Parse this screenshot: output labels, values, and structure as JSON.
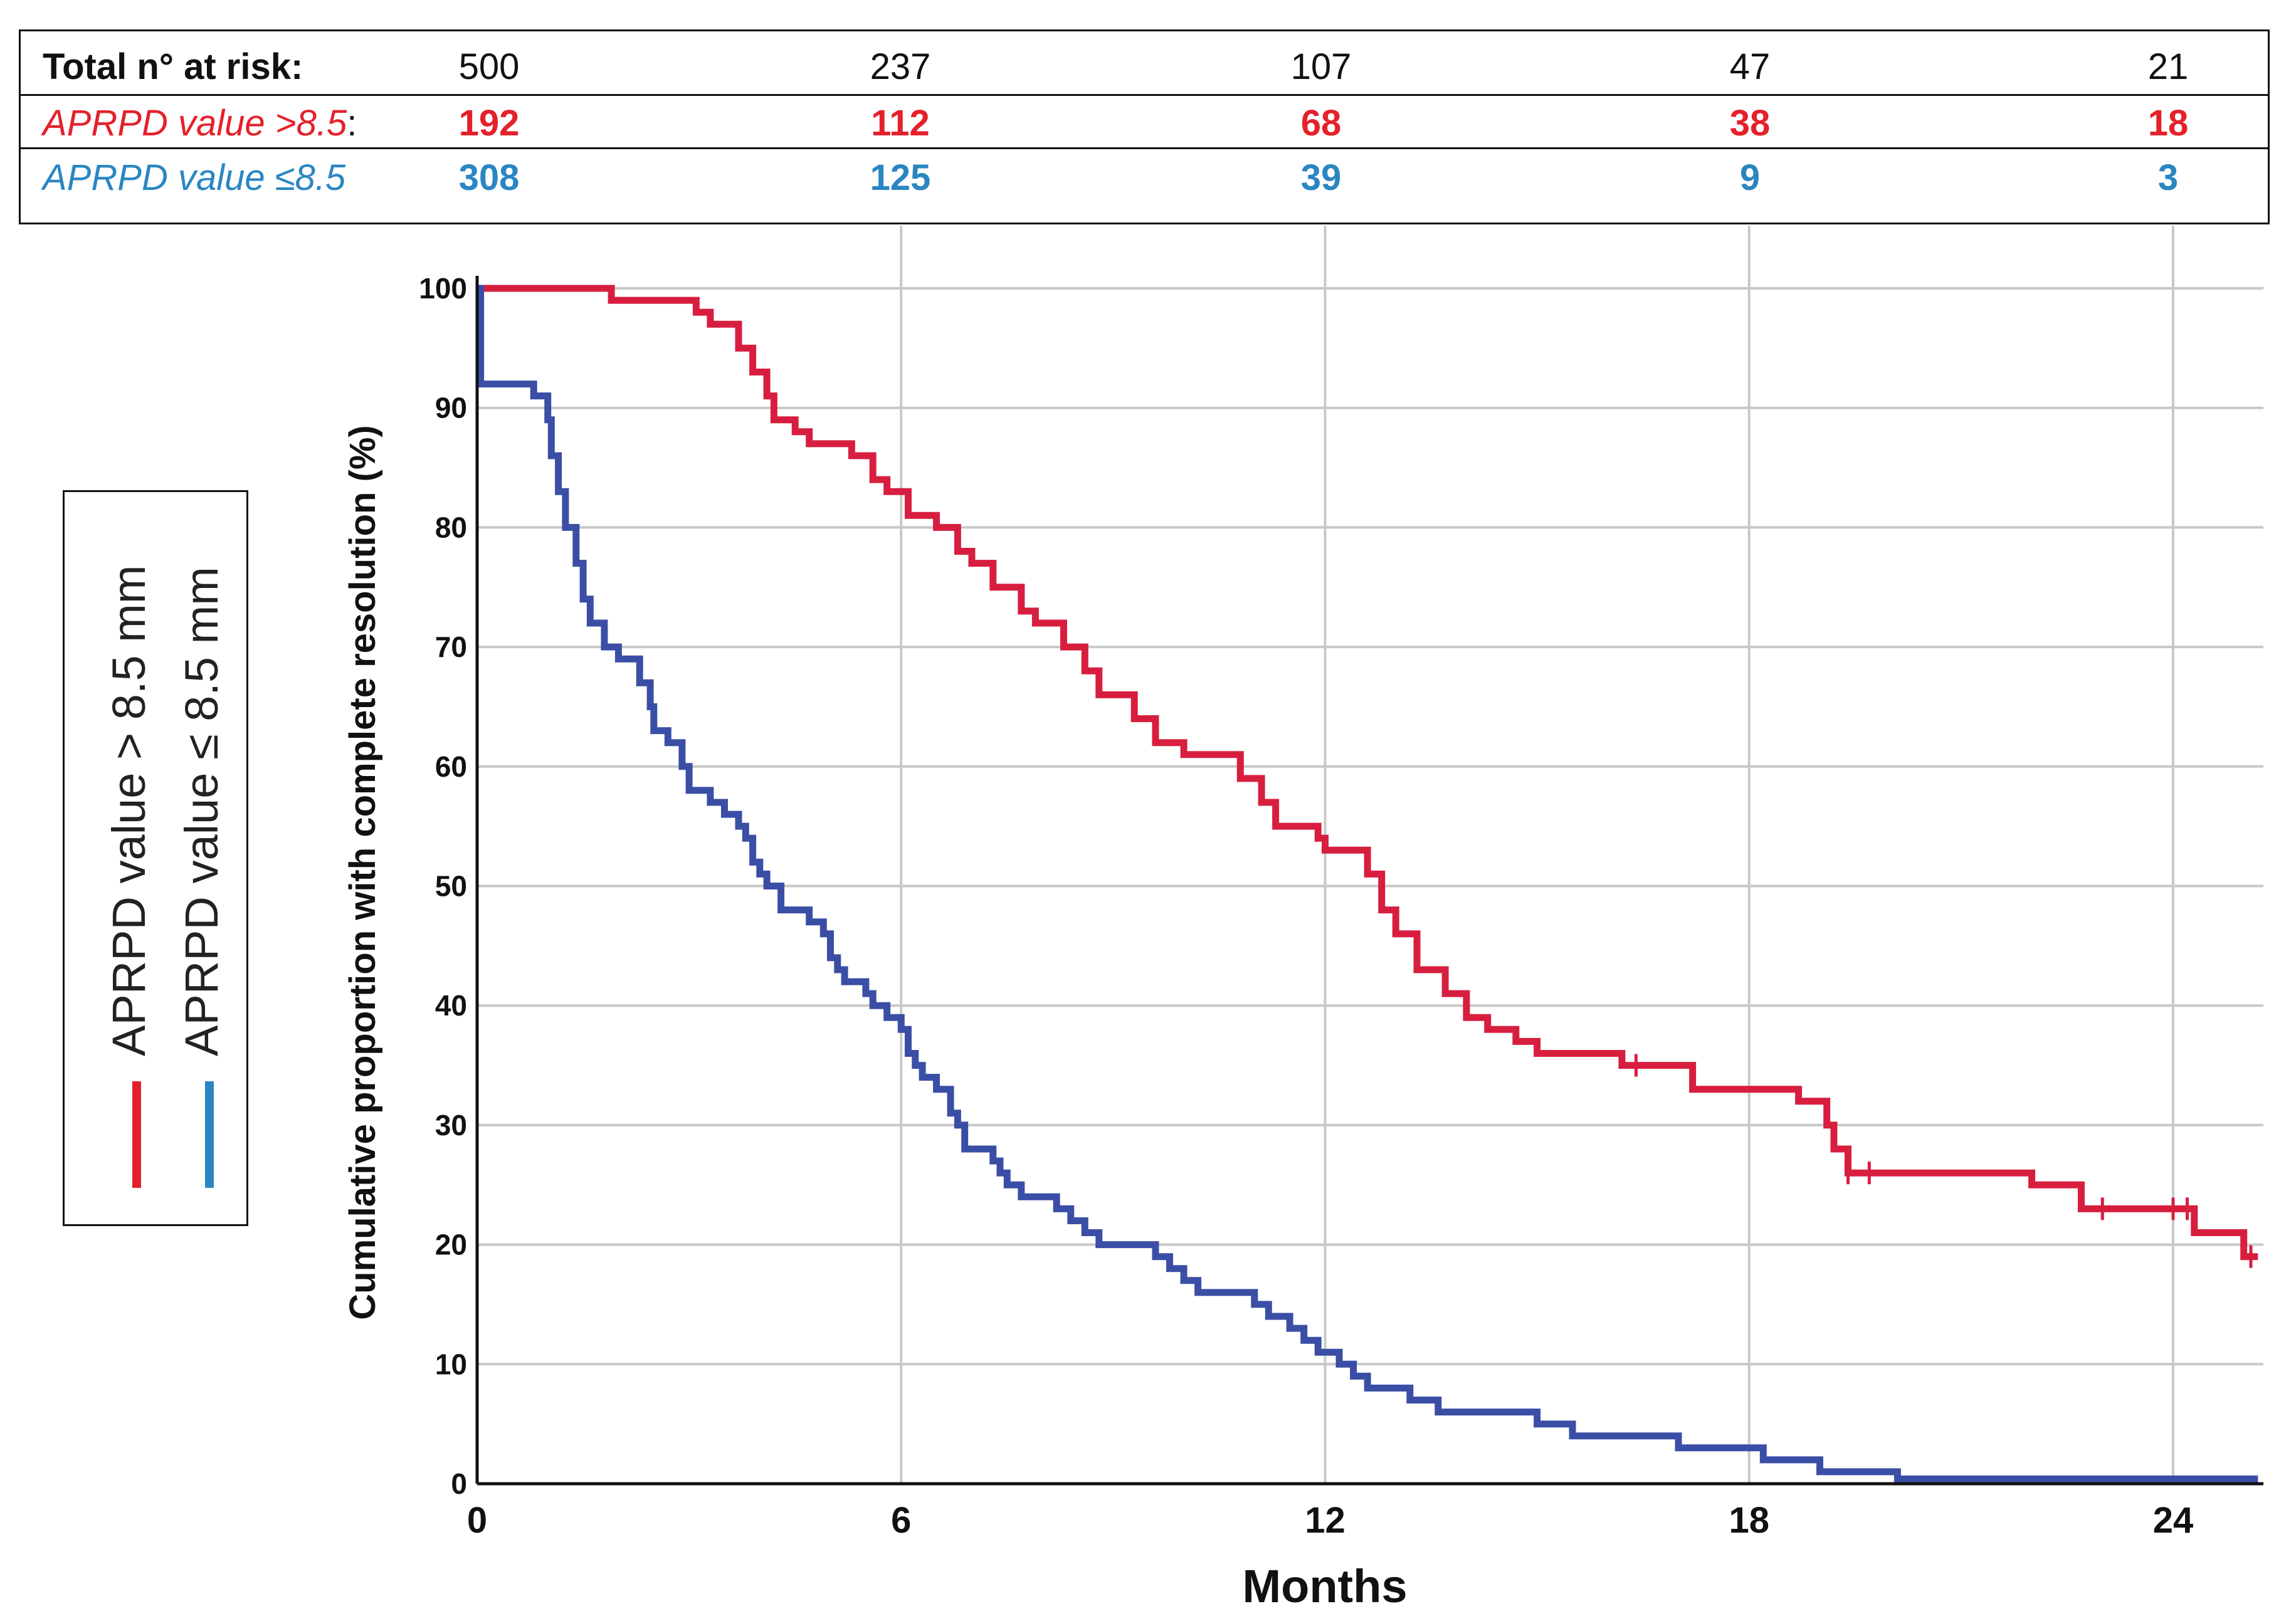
{
  "risk_table": {
    "rows": [
      {
        "label": "Total n° at risk:",
        "label_suffix": "",
        "style": "total",
        "counts": [
          "500",
          "237",
          "107",
          "47",
          "21"
        ]
      },
      {
        "label": "APRPD value >8.5",
        "label_suffix": ":",
        "style": "red",
        "counts": [
          "192",
          "112",
          "68",
          "38",
          "18"
        ]
      },
      {
        "label": "APRPD value ≤8.5",
        "label_suffix": "",
        "style": "blue",
        "counts": [
          "308",
          "125",
          "39",
          "9",
          "3"
        ]
      }
    ]
  },
  "legend": {
    "items": [
      {
        "label": "APRPD value > 8.5 mm",
        "color": "#e4212b"
      },
      {
        "label": "APRPD value ≤ 8.5 mm",
        "color": "#2a86c2"
      }
    ]
  },
  "colors": {
    "red_series": "#d81e3f",
    "blue_series": "#3b4ea6",
    "grid": "#c8c8c8",
    "axis": "#111111"
  },
  "chart_data": {
    "type": "line",
    "step": true,
    "title": "",
    "xlabel": "Months",
    "ylabel": "Cumulative proportion  with complete resolution  (%)",
    "xlim": [
      0,
      25.2
    ],
    "ylim": [
      0,
      100
    ],
    "xticks": [
      0,
      6,
      12,
      18,
      24
    ],
    "yticks": [
      0,
      10,
      20,
      30,
      40,
      50,
      60,
      70,
      80,
      90,
      100
    ],
    "grid": true,
    "legend_position": "left",
    "series": [
      {
        "name": "APRPD value > 8.5 mm",
        "color": "#d81e3f",
        "points": [
          [
            0,
            100
          ],
          [
            1.9,
            100
          ],
          [
            1.9,
            99
          ],
          [
            3.1,
            99
          ],
          [
            3.1,
            98
          ],
          [
            3.3,
            98
          ],
          [
            3.3,
            97
          ],
          [
            3.7,
            97
          ],
          [
            3.7,
            95
          ],
          [
            3.9,
            95
          ],
          [
            3.9,
            93
          ],
          [
            4.1,
            93
          ],
          [
            4.1,
            91
          ],
          [
            4.2,
            91
          ],
          [
            4.2,
            89
          ],
          [
            4.5,
            89
          ],
          [
            4.5,
            88
          ],
          [
            4.7,
            88
          ],
          [
            4.7,
            87
          ],
          [
            5.3,
            87
          ],
          [
            5.3,
            86
          ],
          [
            5.6,
            86
          ],
          [
            5.6,
            84
          ],
          [
            5.8,
            84
          ],
          [
            5.8,
            83
          ],
          [
            6.1,
            83
          ],
          [
            6.1,
            81
          ],
          [
            6.5,
            81
          ],
          [
            6.5,
            80
          ],
          [
            6.8,
            80
          ],
          [
            6.8,
            78
          ],
          [
            7.0,
            78
          ],
          [
            7.0,
            77
          ],
          [
            7.3,
            77
          ],
          [
            7.3,
            75
          ],
          [
            7.7,
            75
          ],
          [
            7.7,
            73
          ],
          [
            7.9,
            73
          ],
          [
            7.9,
            72
          ],
          [
            8.3,
            72
          ],
          [
            8.3,
            70
          ],
          [
            8.6,
            70
          ],
          [
            8.6,
            68
          ],
          [
            8.8,
            68
          ],
          [
            8.8,
            66
          ],
          [
            9.3,
            66
          ],
          [
            9.3,
            64
          ],
          [
            9.6,
            64
          ],
          [
            9.6,
            62
          ],
          [
            10.0,
            62
          ],
          [
            10.0,
            61
          ],
          [
            10.8,
            61
          ],
          [
            10.8,
            59
          ],
          [
            11.1,
            59
          ],
          [
            11.1,
            57
          ],
          [
            11.3,
            57
          ],
          [
            11.3,
            55
          ],
          [
            11.9,
            55
          ],
          [
            11.9,
            54
          ],
          [
            12.0,
            54
          ],
          [
            12.0,
            53
          ],
          [
            12.6,
            53
          ],
          [
            12.6,
            51
          ],
          [
            12.8,
            51
          ],
          [
            12.8,
            48
          ],
          [
            13.0,
            48
          ],
          [
            13.0,
            46
          ],
          [
            13.3,
            46
          ],
          [
            13.3,
            43
          ],
          [
            13.7,
            43
          ],
          [
            13.7,
            41
          ],
          [
            14.0,
            41
          ],
          [
            14.0,
            39
          ],
          [
            14.3,
            39
          ],
          [
            14.3,
            38
          ],
          [
            14.7,
            38
          ],
          [
            14.7,
            37
          ],
          [
            15.0,
            37
          ],
          [
            15.0,
            36
          ],
          [
            16.2,
            36
          ],
          [
            16.2,
            35
          ],
          [
            17.2,
            35
          ],
          [
            17.2,
            33
          ],
          [
            18.7,
            33
          ],
          [
            18.7,
            32
          ],
          [
            19.1,
            32
          ],
          [
            19.1,
            30
          ],
          [
            19.2,
            30
          ],
          [
            19.2,
            28
          ],
          [
            19.4,
            28
          ],
          [
            19.4,
            26
          ],
          [
            22.0,
            26
          ],
          [
            22.0,
            25
          ],
          [
            22.7,
            25
          ],
          [
            22.7,
            23
          ],
          [
            24.3,
            23
          ],
          [
            24.3,
            21
          ],
          [
            25.0,
            21
          ],
          [
            25.0,
            19
          ],
          [
            25.2,
            19
          ]
        ],
        "censor_x": [
          16.4,
          19.4,
          19.7,
          23.0,
          24.0,
          24.2,
          25.1
        ]
      },
      {
        "name": "APRPD value ≤ 8.5 mm",
        "color": "#3b4ea6",
        "points": [
          [
            0,
            100
          ],
          [
            0.05,
            100
          ],
          [
            0.05,
            92
          ],
          [
            0.8,
            92
          ],
          [
            0.8,
            91
          ],
          [
            1.0,
            91
          ],
          [
            1.0,
            89
          ],
          [
            1.05,
            89
          ],
          [
            1.05,
            86
          ],
          [
            1.15,
            86
          ],
          [
            1.15,
            83
          ],
          [
            1.25,
            83
          ],
          [
            1.25,
            80
          ],
          [
            1.4,
            80
          ],
          [
            1.4,
            77
          ],
          [
            1.5,
            77
          ],
          [
            1.5,
            74
          ],
          [
            1.6,
            74
          ],
          [
            1.6,
            72
          ],
          [
            1.8,
            72
          ],
          [
            1.8,
            70
          ],
          [
            2.0,
            70
          ],
          [
            2.0,
            69
          ],
          [
            2.3,
            69
          ],
          [
            2.3,
            67
          ],
          [
            2.45,
            67
          ],
          [
            2.45,
            65
          ],
          [
            2.5,
            65
          ],
          [
            2.5,
            63
          ],
          [
            2.7,
            63
          ],
          [
            2.7,
            62
          ],
          [
            2.9,
            62
          ],
          [
            2.9,
            60
          ],
          [
            3.0,
            60
          ],
          [
            3.0,
            58
          ],
          [
            3.3,
            58
          ],
          [
            3.3,
            57
          ],
          [
            3.5,
            57
          ],
          [
            3.5,
            56
          ],
          [
            3.7,
            56
          ],
          [
            3.7,
            55
          ],
          [
            3.8,
            55
          ],
          [
            3.8,
            54
          ],
          [
            3.9,
            54
          ],
          [
            3.9,
            52
          ],
          [
            4.0,
            52
          ],
          [
            4.0,
            51
          ],
          [
            4.1,
            51
          ],
          [
            4.1,
            50
          ],
          [
            4.3,
            50
          ],
          [
            4.3,
            48
          ],
          [
            4.7,
            48
          ],
          [
            4.7,
            47
          ],
          [
            4.9,
            47
          ],
          [
            4.9,
            46
          ],
          [
            5.0,
            46
          ],
          [
            5.0,
            44
          ],
          [
            5.1,
            44
          ],
          [
            5.1,
            43
          ],
          [
            5.2,
            43
          ],
          [
            5.2,
            42
          ],
          [
            5.5,
            42
          ],
          [
            5.5,
            41
          ],
          [
            5.6,
            41
          ],
          [
            5.6,
            40
          ],
          [
            5.8,
            40
          ],
          [
            5.8,
            39
          ],
          [
            6.0,
            39
          ],
          [
            6.0,
            38
          ],
          [
            6.1,
            38
          ],
          [
            6.1,
            36
          ],
          [
            6.2,
            36
          ],
          [
            6.2,
            35
          ],
          [
            6.3,
            35
          ],
          [
            6.3,
            34
          ],
          [
            6.5,
            34
          ],
          [
            6.5,
            33
          ],
          [
            6.7,
            33
          ],
          [
            6.7,
            31
          ],
          [
            6.8,
            31
          ],
          [
            6.8,
            30
          ],
          [
            6.9,
            30
          ],
          [
            6.9,
            28
          ],
          [
            7.3,
            28
          ],
          [
            7.3,
            27
          ],
          [
            7.4,
            27
          ],
          [
            7.4,
            26
          ],
          [
            7.5,
            26
          ],
          [
            7.5,
            25
          ],
          [
            7.7,
            25
          ],
          [
            7.7,
            24
          ],
          [
            8.2,
            24
          ],
          [
            8.2,
            23
          ],
          [
            8.4,
            23
          ],
          [
            8.4,
            22
          ],
          [
            8.6,
            22
          ],
          [
            8.6,
            21
          ],
          [
            8.8,
            21
          ],
          [
            8.8,
            20
          ],
          [
            9.6,
            20
          ],
          [
            9.6,
            19
          ],
          [
            9.8,
            19
          ],
          [
            9.8,
            18
          ],
          [
            10.0,
            18
          ],
          [
            10.0,
            17
          ],
          [
            10.2,
            17
          ],
          [
            10.2,
            16
          ],
          [
            11.0,
            16
          ],
          [
            11.0,
            15
          ],
          [
            11.2,
            15
          ],
          [
            11.2,
            14
          ],
          [
            11.5,
            14
          ],
          [
            11.5,
            13
          ],
          [
            11.7,
            13
          ],
          [
            11.7,
            12
          ],
          [
            11.9,
            12
          ],
          [
            11.9,
            11
          ],
          [
            12.2,
            11
          ],
          [
            12.2,
            10
          ],
          [
            12.4,
            10
          ],
          [
            12.4,
            9
          ],
          [
            12.6,
            9
          ],
          [
            12.6,
            8
          ],
          [
            13.2,
            8
          ],
          [
            13.2,
            7
          ],
          [
            13.6,
            7
          ],
          [
            13.6,
            6
          ],
          [
            15.0,
            6
          ],
          [
            15.0,
            5
          ],
          [
            15.5,
            5
          ],
          [
            15.5,
            4
          ],
          [
            17.0,
            4
          ],
          [
            17.0,
            3
          ],
          [
            18.2,
            3
          ],
          [
            18.2,
            2
          ],
          [
            19.0,
            2
          ],
          [
            19.0,
            1
          ],
          [
            20.1,
            1
          ],
          [
            20.1,
            0.4
          ],
          [
            25.2,
            0.4
          ]
        ],
        "censor_x": []
      }
    ]
  }
}
